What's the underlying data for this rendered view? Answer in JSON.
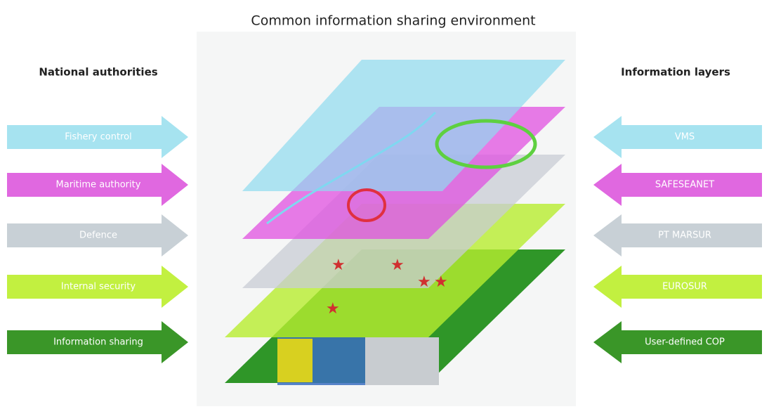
{
  "title": "Common information sharing environment",
  "left": {
    "heading": "National authorities",
    "items": [
      "Fishery control",
      "Maritime authority",
      "Defence",
      "Internal security",
      "Information sharing"
    ]
  },
  "right": {
    "heading": "Information layers",
    "items": [
      "VMS",
      "SAFESEANET",
      "PT MARSUR",
      "EUROSUR",
      "User-defined COP"
    ]
  }
}
